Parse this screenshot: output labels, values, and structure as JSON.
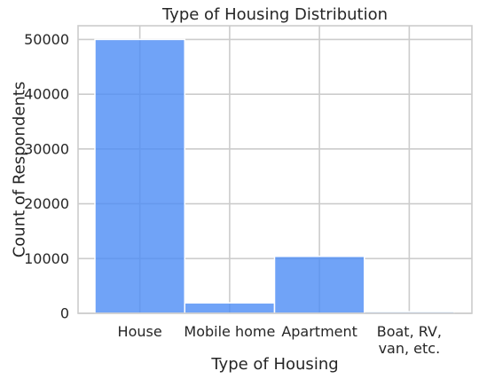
{
  "chart_data": {
    "type": "bar",
    "title": "Type of Housing Distribution",
    "xlabel": "Type of Housing",
    "ylabel": "Count of Respondents",
    "categories": [
      "House",
      "Mobile home",
      "Apartment",
      "Boat, RV, van, etc."
    ],
    "category_label_lines": [
      [
        "House"
      ],
      [
        "Mobile home"
      ],
      [
        "Apartment"
      ],
      [
        "Boat, RV,",
        "van, etc."
      ]
    ],
    "values": [
      50000,
      1900,
      10400,
      300
    ],
    "ylim": [
      0,
      52500
    ],
    "yticks": [
      0,
      10000,
      20000,
      30000,
      40000,
      50000
    ],
    "ytick_labels": [
      "0",
      "10000",
      "20000",
      "30000",
      "40000",
      "50000"
    ],
    "grid": true,
    "bar_color": "#4c8cf5",
    "bar_alpha": 0.8,
    "grid_color": "#cccccc",
    "text_color": "#262626"
  }
}
